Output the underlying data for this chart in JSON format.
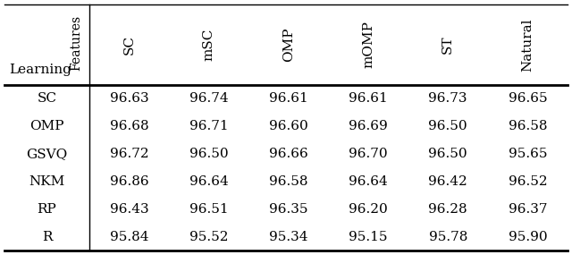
{
  "col_headers": [
    "SC",
    "mSC",
    "OMP",
    "mOMP",
    "ST",
    "Natural"
  ],
  "row_headers": [
    "SC",
    "OMP",
    "GSVQ",
    "NKM",
    "RP",
    "R"
  ],
  "corner_label_left": "Learning",
  "corner_label_right": "Features",
  "table_data": [
    [
      "96.63",
      "96.74",
      "96.61",
      "96.61",
      "96.73",
      "96.65"
    ],
    [
      "96.68",
      "96.71",
      "96.60",
      "96.69",
      "96.50",
      "96.58"
    ],
    [
      "96.72",
      "96.50",
      "96.66",
      "96.70",
      "96.50",
      "95.65"
    ],
    [
      "96.86",
      "96.64",
      "96.58",
      "96.64",
      "96.42",
      "96.52"
    ],
    [
      "96.43",
      "96.51",
      "96.35",
      "96.20",
      "96.28",
      "96.37"
    ],
    [
      "95.84",
      "95.52",
      "95.34",
      "95.15",
      "95.78",
      "95.90"
    ]
  ],
  "bg_color": "#ffffff",
  "text_color": "#000000",
  "font_size": 11,
  "header_font_size": 11
}
